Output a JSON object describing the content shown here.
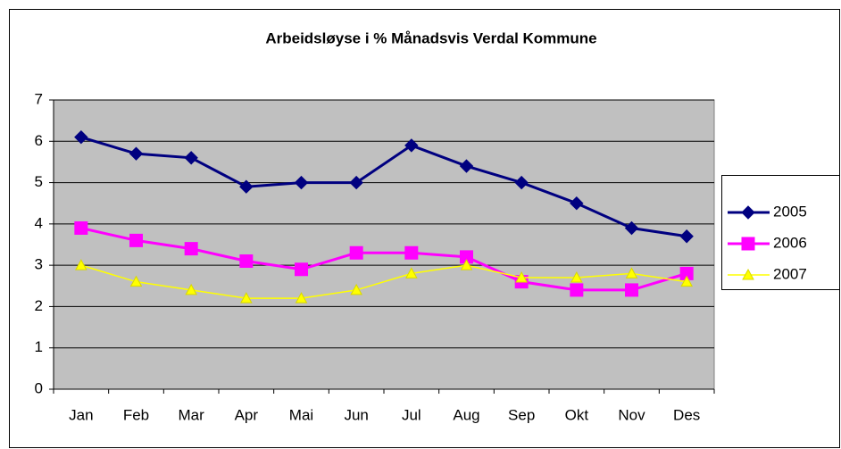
{
  "chart_data": {
    "type": "line",
    "title": "Arbeidsløyse i % Månadsvis Verdal Kommune",
    "categories": [
      "Jan",
      "Feb",
      "Mar",
      "Apr",
      "Mai",
      "Jun",
      "Jul",
      "Aug",
      "Sep",
      "Okt",
      "Nov",
      "Des"
    ],
    "series": [
      {
        "name": "2005",
        "color": "#000080",
        "marker": "diamond",
        "values": [
          6.1,
          5.7,
          5.6,
          4.9,
          5.0,
          5.0,
          5.9,
          5.4,
          5.0,
          4.5,
          3.9,
          3.7
        ]
      },
      {
        "name": "2006",
        "color": "#ff00ff",
        "marker": "square",
        "values": [
          3.9,
          3.6,
          3.4,
          3.1,
          2.9,
          3.3,
          3.3,
          3.2,
          2.6,
          2.4,
          2.4,
          2.8
        ]
      },
      {
        "name": "2007",
        "color": "#ffff00",
        "marker": "triangle",
        "values": [
          3.0,
          2.6,
          2.4,
          2.2,
          2.2,
          2.4,
          2.8,
          3.0,
          2.7,
          2.7,
          2.8,
          2.6
        ]
      }
    ],
    "ylim": [
      0,
      7
    ],
    "yticks": [
      0,
      1,
      2,
      3,
      4,
      5,
      6,
      7
    ],
    "grid": true,
    "plot_background": "#c0c0c0",
    "legend": "right"
  }
}
